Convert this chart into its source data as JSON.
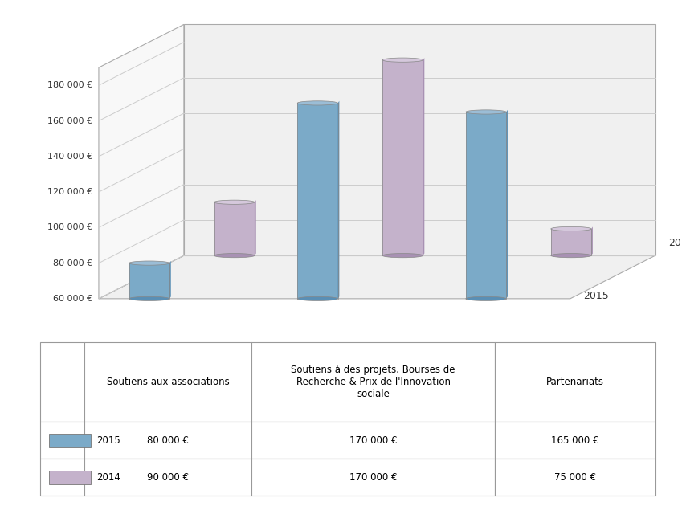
{
  "categories": [
    "Soutiens aux\nassociations",
    "Soutiens à des projets,\nBourses de Recherche &\nPrix de l'Innovation\nsociale",
    "Partenariats"
  ],
  "series": {
    "2015": [
      80000,
      170000,
      165000
    ],
    "2014": [
      90000,
      170000,
      75000
    ]
  },
  "colors": {
    "2015_body": "#7BAAC8",
    "2015_top": "#9BBDD6",
    "2015_dark": "#5A8FB5",
    "2014_body": "#C4B2CB",
    "2014_top": "#D5C8DC",
    "2014_dark": "#A891B3"
  },
  "ylim_min": 60000,
  "ylim_max": 190000,
  "yticks": [
    60000,
    80000,
    100000,
    120000,
    140000,
    160000,
    180000
  ],
  "ytick_labels": [
    "60 000 €",
    "80 000 €",
    "100 000 €",
    "120 000 €",
    "140 000 €",
    "160 000 €",
    "180 000 €"
  ],
  "cat_labels": [
    "Soutiens aux\nassociations",
    "Soutiens à des projets,\nBourses de Recherche &\nPrix de l'Innovation\nsociale",
    "Partenariats"
  ],
  "table_col_headers": [
    "Soutiens aux associations",
    "Soutiens à des projets, Bourses de\nRecherche & Prix de l'Innovation\nsociale",
    "Partenariats"
  ],
  "table_row_labels": [
    "2015",
    "2014"
  ],
  "table_values_2015": [
    "80 000 €",
    "170 000 €",
    "165 000 €"
  ],
  "table_values_2014": [
    "90 000 €",
    "170 000 €",
    "75 000 €"
  ],
  "background_color": "#FFFFFF",
  "grid_color": "#CCCCCC",
  "text_color": "#404040"
}
